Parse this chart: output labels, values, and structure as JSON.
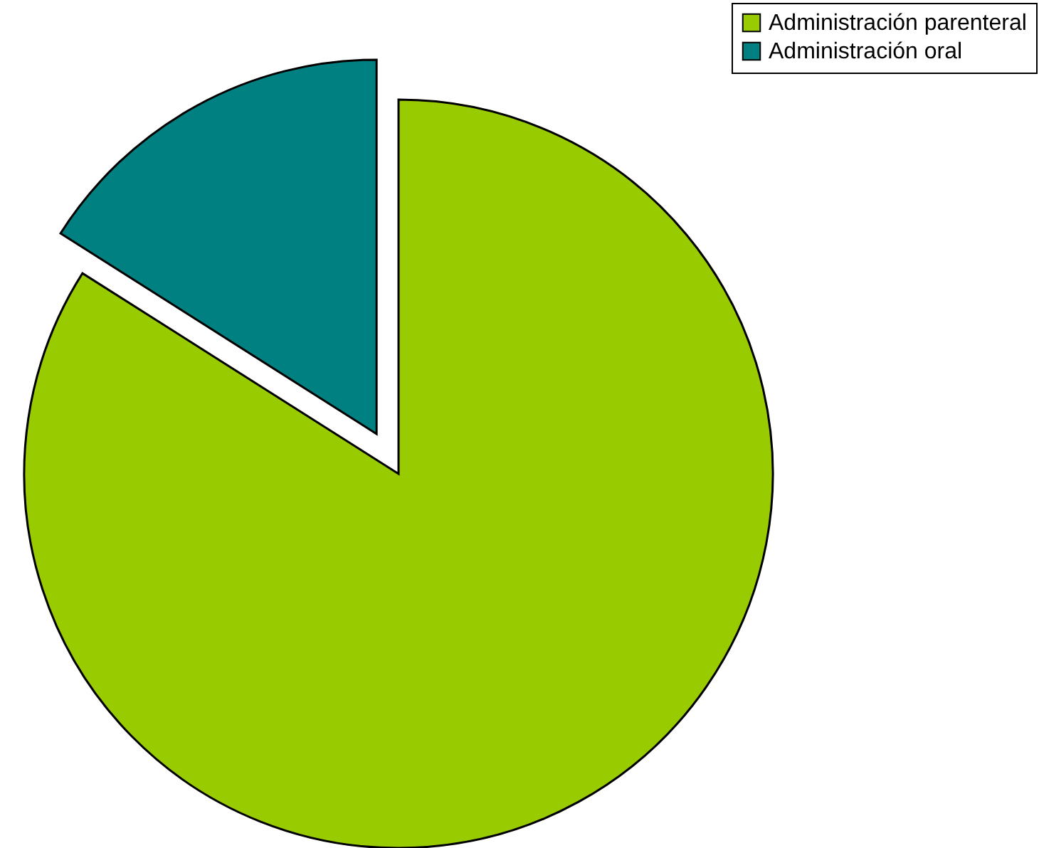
{
  "chart_data": {
    "type": "pie",
    "categories": [
      "Administración parenteral",
      "Administración oral"
    ],
    "values": [
      84,
      16
    ],
    "colors": [
      "#99cc00",
      "#008080"
    ],
    "legend": "top right"
  }
}
